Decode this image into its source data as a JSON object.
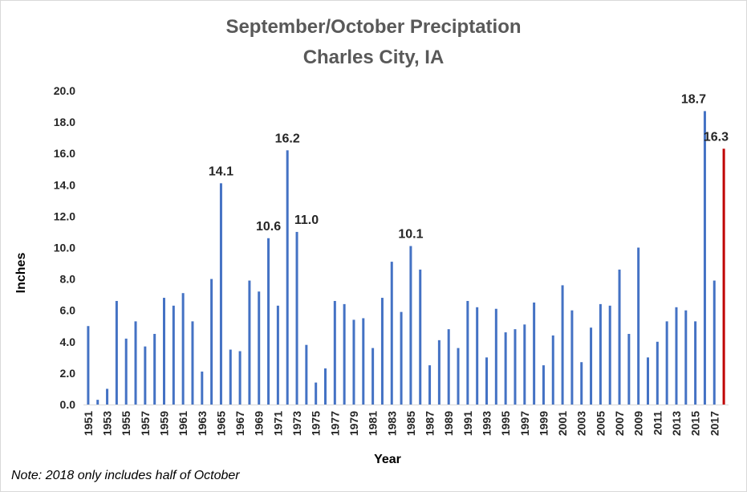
{
  "chart_data": {
    "type": "bar",
    "title": "September/October Preciptation",
    "subtitle": "Charles City, IA",
    "xlabel": "Year",
    "ylabel": "Inches",
    "ylim": [
      0,
      20
    ],
    "yticks": [
      "0.0",
      "2.0",
      "4.0",
      "6.0",
      "8.0",
      "10.0",
      "12.0",
      "14.0",
      "16.0",
      "18.0",
      "20.0"
    ],
    "grid": false,
    "categories": [
      1951,
      1952,
      1953,
      1954,
      1955,
      1956,
      1957,
      1958,
      1959,
      1960,
      1961,
      1962,
      1963,
      1964,
      1965,
      1966,
      1967,
      1968,
      1969,
      1970,
      1971,
      1972,
      1973,
      1974,
      1975,
      1976,
      1977,
      1978,
      1979,
      1980,
      1981,
      1982,
      1983,
      1984,
      1985,
      1986,
      1987,
      1988,
      1989,
      1990,
      1991,
      1992,
      1993,
      1994,
      1995,
      1996,
      1997,
      1998,
      1999,
      2000,
      2001,
      2002,
      2003,
      2004,
      2005,
      2006,
      2007,
      2008,
      2009,
      2010,
      2011,
      2012,
      2013,
      2014,
      2015,
      2016,
      2017,
      2018
    ],
    "values": [
      5.0,
      0.3,
      1.0,
      6.6,
      4.2,
      5.3,
      3.7,
      4.5,
      6.8,
      6.3,
      7.1,
      5.3,
      2.1,
      8.0,
      14.1,
      3.5,
      3.4,
      7.9,
      7.2,
      10.6,
      6.3,
      16.2,
      11.0,
      3.8,
      1.4,
      2.3,
      6.6,
      6.4,
      5.4,
      5.5,
      3.6,
      6.8,
      9.1,
      5.9,
      10.1,
      8.6,
      2.5,
      4.1,
      4.8,
      3.6,
      6.6,
      6.2,
      3.0,
      6.1,
      4.6,
      4.8,
      5.1,
      6.5,
      2.5,
      4.4,
      7.6,
      6.0,
      2.7,
      4.9,
      6.4,
      6.3,
      8.6,
      4.5,
      10.0,
      3.0,
      4.0,
      5.3,
      6.2,
      6.0,
      5.3,
      18.7,
      7.9,
      16.3
    ],
    "colors": {
      "default": "#4472c4",
      "highlight": "#c00000"
    },
    "highlight_years": [
      2018
    ],
    "data_labels": [
      {
        "year": 1965,
        "text": "14.1"
      },
      {
        "year": 1970,
        "text": "10.6"
      },
      {
        "year": 1972,
        "text": "16.2"
      },
      {
        "year": 1973,
        "text": "11.0"
      },
      {
        "year": 1985,
        "text": "10.1"
      },
      {
        "year": 2016,
        "text": "18.7"
      },
      {
        "year": 2018,
        "text": "16.3"
      }
    ],
    "note": "Note: 2018 only includes half of October"
  }
}
